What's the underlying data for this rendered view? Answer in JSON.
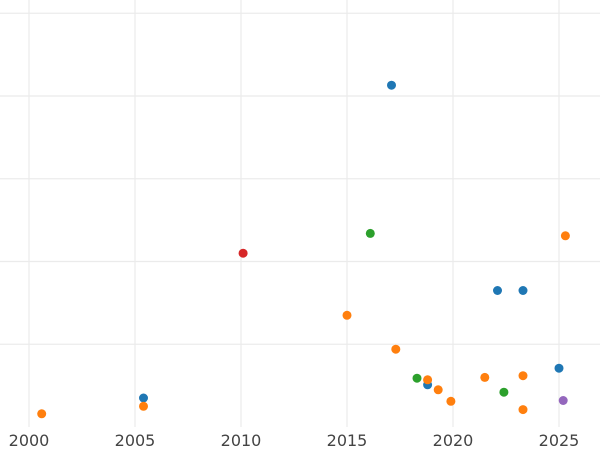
{
  "chart_data": {
    "type": "scatter",
    "title": "",
    "xlabel": "",
    "ylabel": "",
    "xlim": [
      1998.6,
      2026.9
    ],
    "ylim": [
      0,
      5.15
    ],
    "x_ticks": [
      2000,
      2005,
      2010,
      2015,
      2020,
      2025
    ],
    "x_tick_labels": [
      "2000",
      "2005",
      "2010",
      "2015",
      "2020",
      "2025"
    ],
    "y_gridlines": [
      0,
      1,
      2,
      3,
      4,
      5
    ],
    "y_tick_labels_visible": false,
    "y_units_note": "y values in gridline units (no y-axis labels shown)",
    "grid": true,
    "legend": null,
    "colors": {
      "blue": "#1f77b4",
      "orange": "#ff7f0e",
      "green": "#2ca02c",
      "red": "#d62728",
      "purple": "#9467bd"
    },
    "series": [
      {
        "name": "blue",
        "color": "#1f77b4",
        "points": [
          [
            2005.4,
            0.35
          ],
          [
            2017.1,
            4.13
          ],
          [
            2018.8,
            0.51
          ],
          [
            2022.1,
            1.65
          ],
          [
            2023.3,
            1.65
          ],
          [
            2025.0,
            0.71
          ]
        ]
      },
      {
        "name": "orange",
        "color": "#ff7f0e",
        "points": [
          [
            2000.6,
            0.16
          ],
          [
            2005.4,
            0.25
          ],
          [
            2015.0,
            1.35
          ],
          [
            2017.3,
            0.94
          ],
          [
            2018.8,
            0.57
          ],
          [
            2019.3,
            0.45
          ],
          [
            2019.9,
            0.31
          ],
          [
            2021.5,
            0.6
          ],
          [
            2023.3,
            0.21
          ],
          [
            2023.3,
            0.62
          ],
          [
            2025.3,
            2.31
          ]
        ]
      },
      {
        "name": "green",
        "color": "#2ca02c",
        "points": [
          [
            2016.1,
            2.34
          ],
          [
            2018.3,
            0.59
          ],
          [
            2022.4,
            0.42
          ]
        ]
      },
      {
        "name": "red",
        "color": "#d62728",
        "points": [
          [
            2010.1,
            2.1
          ]
        ]
      },
      {
        "name": "purple",
        "color": "#9467bd",
        "points": [
          [
            2025.2,
            0.32
          ]
        ]
      }
    ]
  }
}
